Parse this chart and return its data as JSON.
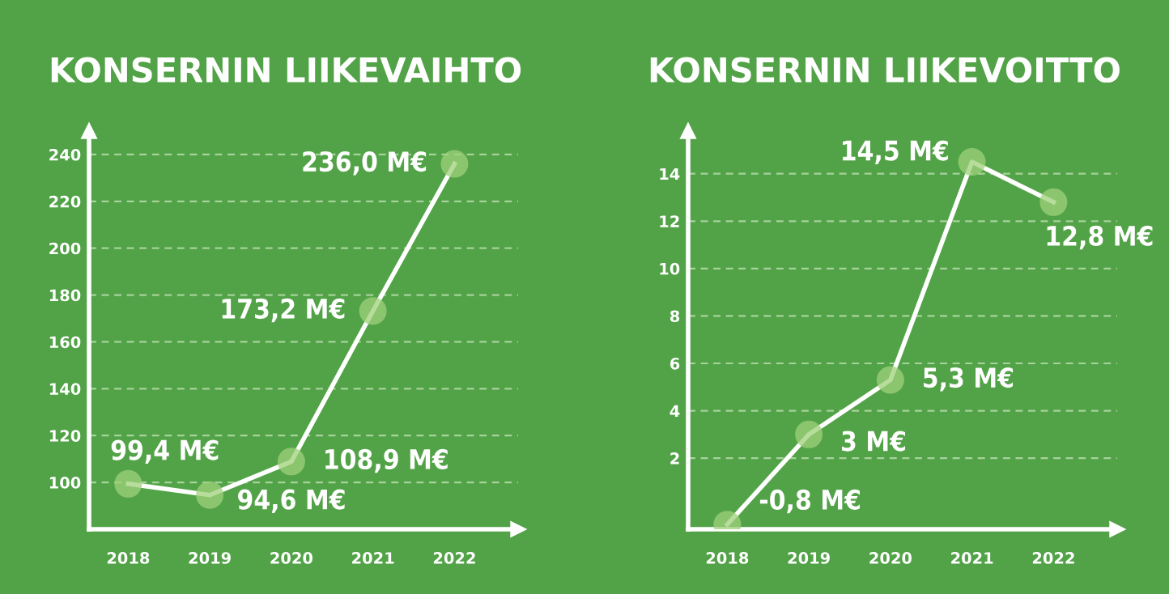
{
  "chart_data": [
    {
      "type": "line",
      "title": "KONSERNIN LIIKEVAIHTO",
      "categories": [
        "2018",
        "2019",
        "2020",
        "2021",
        "2022"
      ],
      "series": [
        {
          "color": "#ffffff",
          "values": [
            99.4,
            94.6,
            108.9,
            173.2,
            236.0
          ],
          "value_labels": [
            "99,4 M€",
            "94,6 M€",
            "108,9 M€",
            "173,2 M€",
            "236,0 M€"
          ]
        }
      ],
      "ylim": [
        80,
        250
      ],
      "yticks": [
        100,
        120,
        140,
        160,
        180,
        200,
        220,
        240
      ],
      "grid": "y",
      "marker": "circle",
      "line_style": "solid",
      "legend": false
    },
    {
      "type": "line",
      "title": "KONSERNIN LIIKEVOITTO",
      "categories": [
        "2018",
        "2019",
        "2020",
        "2021",
        "2022"
      ],
      "series": [
        {
          "color": "#ffffff",
          "values": [
            -0.8,
            3,
            5.3,
            14.5,
            12.8
          ],
          "value_labels": [
            "-0,8 M€",
            "3 M€",
            "5,3 M€",
            "14,5 M€",
            "12,8 M€"
          ]
        }
      ],
      "ylim": [
        -1,
        15.8
      ],
      "yticks": [
        2,
        4,
        6,
        8,
        10,
        12,
        14
      ],
      "grid": "y",
      "marker": "circle",
      "line_style": "solid",
      "legend": false
    }
  ]
}
